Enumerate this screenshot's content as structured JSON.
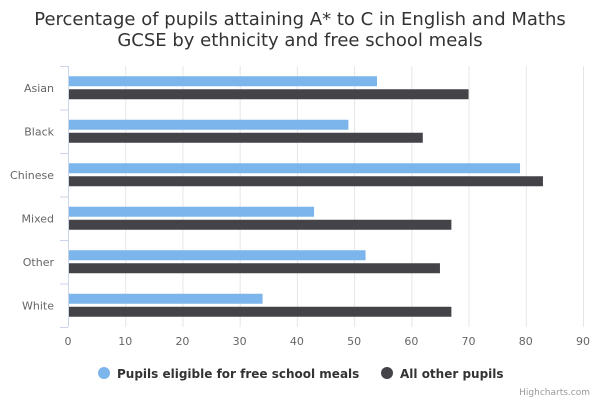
{
  "chart_data": {
    "type": "bar",
    "orientation": "horizontal",
    "title_lines": [
      "Percentage of pupils attaining A* to C in English and Maths",
      "GCSE by ethnicity and free school meals"
    ],
    "categories": [
      "Asian",
      "Black",
      "Chinese",
      "Mixed",
      "Other",
      "White"
    ],
    "series": [
      {
        "name": "Pupils eligible for free school meals",
        "color": "#7cb5ec",
        "values": [
          54,
          49,
          79,
          43,
          52,
          34
        ]
      },
      {
        "name": "All other pupils",
        "color": "#434348",
        "values": [
          70,
          62,
          83,
          67,
          65,
          67
        ]
      }
    ],
    "xlim": [
      0,
      90
    ],
    "x_ticks": [
      0,
      10,
      20,
      30,
      40,
      50,
      60,
      70,
      80,
      90
    ],
    "grid": true,
    "legend_position": "bottom-center",
    "credits": "Highcharts.com"
  }
}
